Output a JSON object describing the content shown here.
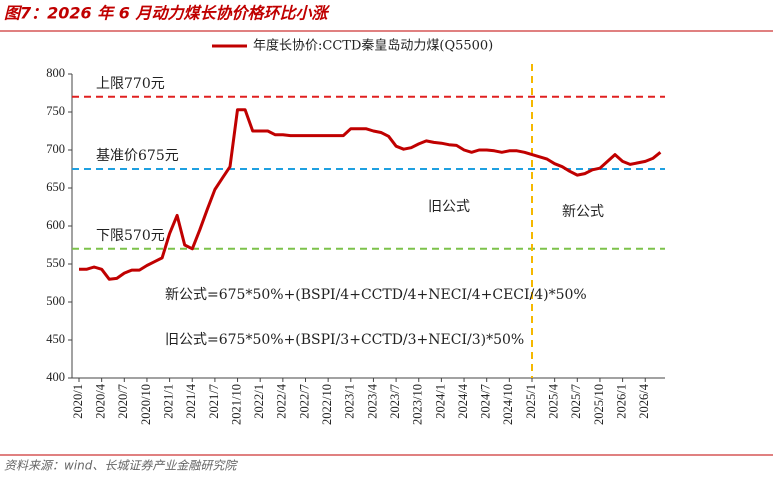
{
  "chart_data": {
    "type": "line",
    "title": "图7：2026 年 6 月动力煤长协价格环比小涨",
    "source": "资料来源：wind、长城证券产业金融研究院",
    "categories": [
      "2020/1",
      null,
      null,
      "2020/4",
      null,
      null,
      "2020/7",
      null,
      null,
      "2020/10",
      null,
      null,
      "2021/1",
      null,
      null,
      "2021/4",
      null,
      null,
      "2021/7",
      null,
      null,
      "2021/10",
      null,
      null,
      "2022/1",
      null,
      null,
      "2022/4",
      null,
      null,
      "2022/7",
      null,
      null,
      "2022/10",
      null,
      null,
      "2023/1",
      null,
      null,
      "2023/4",
      null,
      null,
      "2023/7",
      null,
      null,
      "2023/10",
      null,
      null,
      "2024/1",
      null,
      null,
      "2024/4",
      null,
      null,
      "2024/7",
      null,
      null,
      "2024/10",
      null,
      null,
      "2025/1",
      null,
      null,
      "2025/4",
      null,
      null,
      "2025/7",
      null,
      null,
      "2025/10",
      null,
      null,
      "2026/1",
      null,
      null,
      "2026/4",
      null,
      null
    ],
    "series": [
      {
        "name": "年度长协价:CCTD秦皇岛动力煤(Q5500)",
        "color": "#c00000",
        "values": [
          543,
          543,
          546,
          543,
          530,
          531,
          538,
          542,
          542,
          548,
          553,
          558,
          590,
          614,
          575,
          570,
          595,
          622,
          648,
          663,
          678,
          753,
          753,
          725,
          725,
          725,
          720,
          720,
          719,
          719,
          719,
          719,
          719,
          719,
          719,
          719,
          728,
          728,
          728,
          725,
          723,
          718,
          705,
          701,
          703,
          708,
          712,
          710,
          709,
          707,
          706,
          700,
          697,
          700,
          700,
          699,
          697,
          699,
          699,
          697,
          694,
          691,
          688,
          682,
          678,
          672,
          667,
          669,
          674,
          676,
          685,
          694,
          685,
          681,
          683,
          685,
          689,
          697
        ]
      }
    ],
    "ylim": [
      400,
      800
    ],
    "yticks": [
      400,
      450,
      500,
      550,
      600,
      650,
      700,
      750,
      800
    ],
    "reference_lines": [
      {
        "value": 770,
        "label": "上限770元",
        "color": "#e02020"
      },
      {
        "value": 675,
        "label": "基准价675元",
        "color": "#1fa0e0"
      },
      {
        "value": 570,
        "label": "下限570元",
        "color": "#7cc24a"
      }
    ],
    "vertical_line": {
      "category": "2025/1",
      "color": "#f5b800"
    },
    "annotations": [
      "旧公式",
      "新公式",
      "新公式=675*50%+(BSPI/4+CCTD/4+NECI/4+CECI/4)*50%",
      "旧公式=675*50%+(BSPI/3+CCTD/3+NECI/3)*50%"
    ]
  }
}
